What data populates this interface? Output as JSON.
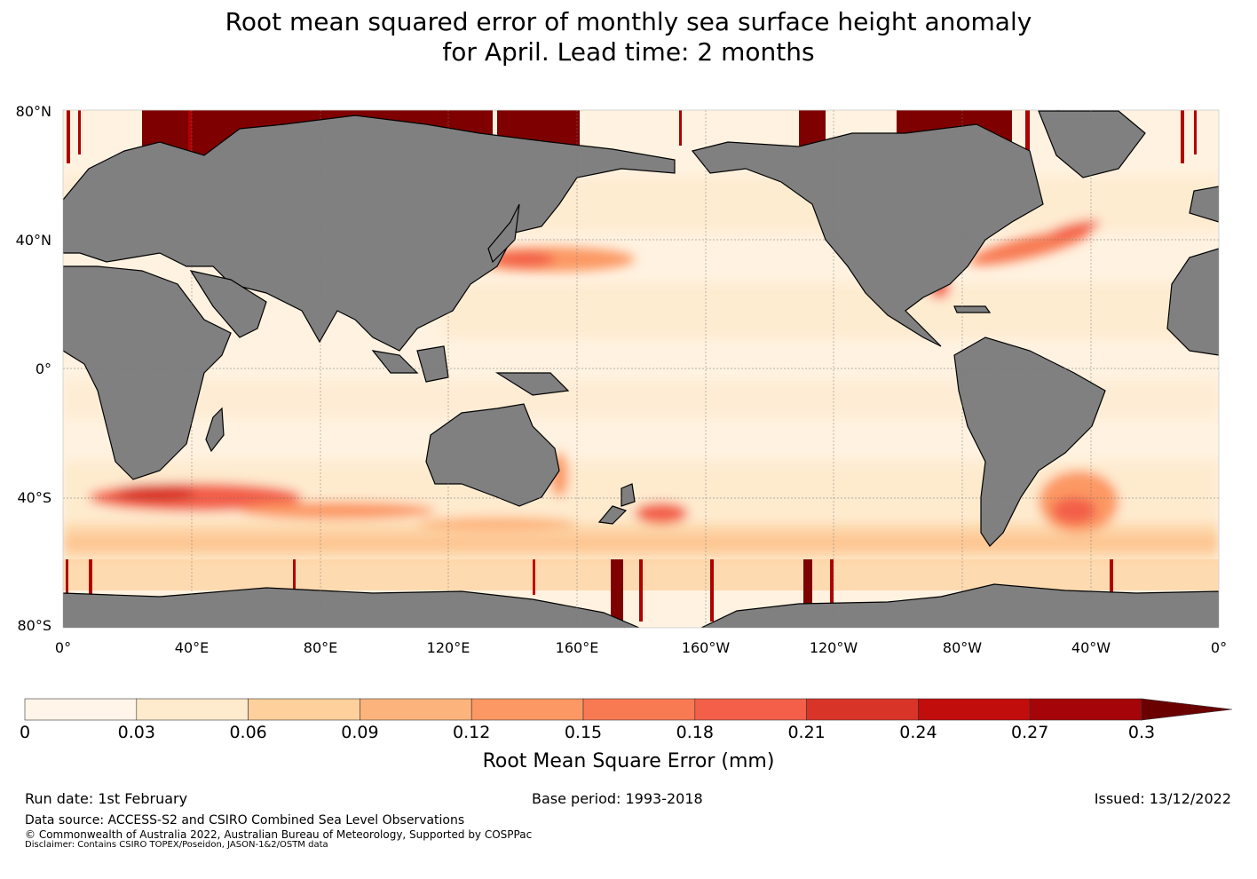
{
  "title": {
    "line1": "Root mean squared error of monthly sea surface height anomaly",
    "line2": "for April. Lead time: 2 months"
  },
  "map": {
    "projection": "equirectangular",
    "ocean_field": "RMSE of sea surface height anomaly",
    "land_color": "#808080",
    "lat_labels": [
      "80°N",
      "40°N",
      "0°",
      "40°S",
      "80°S"
    ],
    "lon_labels": [
      "0°",
      "40°E",
      "80°E",
      "120°E",
      "160°E",
      "160°W",
      "120°W",
      "80°W",
      "40°W",
      "0°"
    ]
  },
  "colorbar": {
    "levels": [
      "0",
      "0.03",
      "0.06",
      "0.09",
      "0.12",
      "0.15",
      "0.18",
      "0.21",
      "0.24",
      "0.27",
      "0.3"
    ],
    "colors": [
      "#fff5e8",
      "#feeacc",
      "#fdd09c",
      "#fdb47c",
      "#fc9863",
      "#f87a53",
      "#f35f48",
      "#d93428",
      "#c20d0d",
      "#a50509"
    ],
    "extend_color": "#6a0000",
    "label": "Root Mean Square Error (mm)"
  },
  "footer": {
    "run_date": "Run date: 1st February",
    "base_period": "Base period: 1993-2018",
    "issued": "Issued: 13/12/2022",
    "data_source": "Data source: ACCESS-S2 and CSIRO Combined Sea Level Observations",
    "copyright": "© Commonwealth of Australia 2022, Australian Bureau of Meteorology, Supported by COSPPac",
    "disclaimer": "Disclaimer: Contains CSIRO TOPEX/Poseidon, JASON-1&2/OSTM data"
  }
}
